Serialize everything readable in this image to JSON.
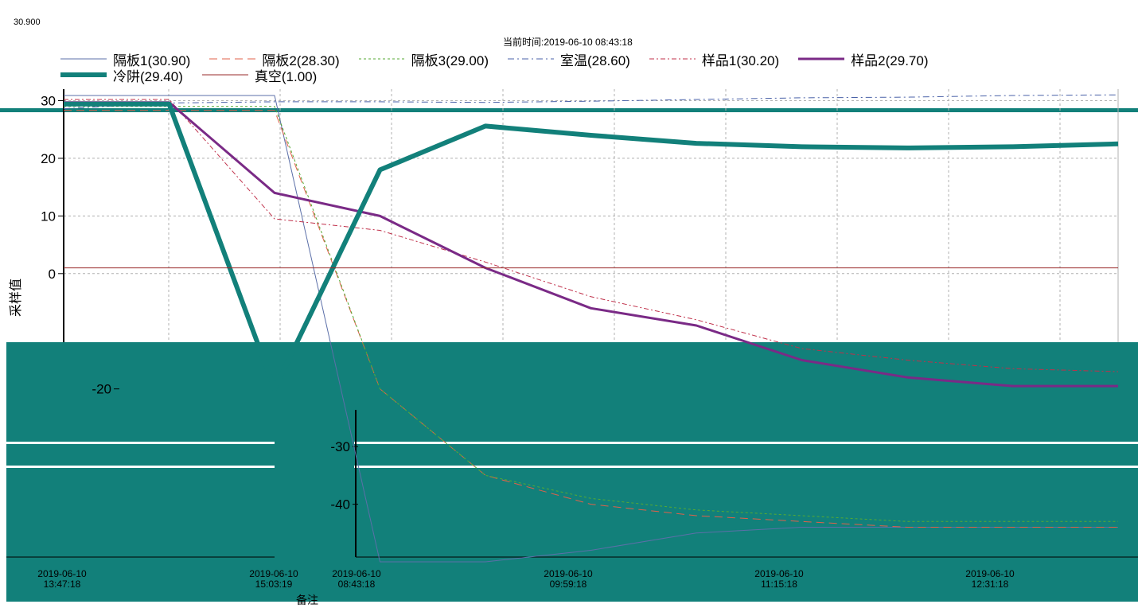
{
  "corner_value": "30.900",
  "current_time_label": "当前时间:2019-06-10  08:43:18",
  "footer_note": "备注",
  "colors": {
    "panel_bg": "#12807a",
    "grid": "#b0b0b0",
    "axis": "#000000"
  },
  "chart_data": {
    "type": "line",
    "title": "",
    "ylabel": "采样值",
    "ylim": [
      -50,
      32
    ],
    "yticks": [
      30,
      20,
      10,
      0,
      -20,
      -30,
      -40
    ],
    "xticks_left": [
      {
        "date": "2019-06-10",
        "time": "13:47:18"
      },
      {
        "date": "2019-06-10",
        "time": "15:03:19"
      }
    ],
    "xticks_right": [
      {
        "date": "2019-06-10",
        "time": "08:43:18"
      },
      {
        "date": "2019-06-10",
        "time": "09:59:18"
      },
      {
        "date": "2019-06-10",
        "time": "11:15:18"
      },
      {
        "date": "2019-06-10",
        "time": "12:31:18"
      }
    ],
    "series": [
      {
        "name": "隔板1(30.90)",
        "color": "#5b6fa8",
        "dash": "",
        "width": 1,
        "values": [
          30.9,
          30.9,
          30.9,
          -50,
          -50,
          -48,
          -45,
          -44,
          -44,
          -44,
          -44
        ]
      },
      {
        "name": "隔板2(28.30)",
        "color": "#e0604a",
        "dash": "10,6",
        "width": 1,
        "values": [
          28.3,
          28.3,
          28.3,
          -20,
          -35,
          -40,
          -42,
          -43,
          -44,
          -44,
          -44
        ]
      },
      {
        "name": "隔板3(29.00)",
        "color": "#55aa33",
        "dash": "3,3",
        "width": 1,
        "values": [
          29.0,
          29.0,
          29.0,
          -20,
          -35,
          -39,
          -41,
          -42,
          -43,
          -43,
          -43
        ]
      },
      {
        "name": "室温(28.60)",
        "color": "#4a62a8",
        "dash": "8,4,2,4",
        "width": 1,
        "values": [
          28.6,
          29.6,
          29.8,
          29.8,
          29.7,
          29.9,
          30.2,
          30.5,
          30.6,
          30.9,
          31.0
        ]
      },
      {
        "name": "样品1(30.20)",
        "color": "#c0304a",
        "dash": "6,3,2,3",
        "width": 1,
        "values": [
          30.2,
          30.2,
          9.5,
          7.5,
          2.0,
          -4.0,
          -8.0,
          -13.0,
          -15.0,
          -16.5,
          -17.0
        ]
      },
      {
        "name": "样品2(29.70)",
        "color": "#7a2a86",
        "dash": "",
        "width": 3,
        "values": [
          29.7,
          29.7,
          14.0,
          10.0,
          1.0,
          -6.0,
          -9.0,
          -15.0,
          -18.0,
          -19.5,
          -19.5
        ]
      },
      {
        "name": "冷阱(29.40)",
        "color": "#12807a",
        "dash": "",
        "width": 6,
        "values": [
          29.4,
          29.4,
          -20.0,
          18.0,
          25.6,
          24.0,
          22.6,
          22.0,
          21.8,
          22.0,
          22.5
        ]
      },
      {
        "name": "真空(1.00)",
        "color": "#9a2a2a",
        "dash": "",
        "width": 1,
        "values": [
          1.0,
          1.0,
          1.0,
          1.0,
          1.0,
          1.0,
          1.0,
          1.0,
          1.0,
          1.0,
          1.0
        ]
      }
    ]
  }
}
